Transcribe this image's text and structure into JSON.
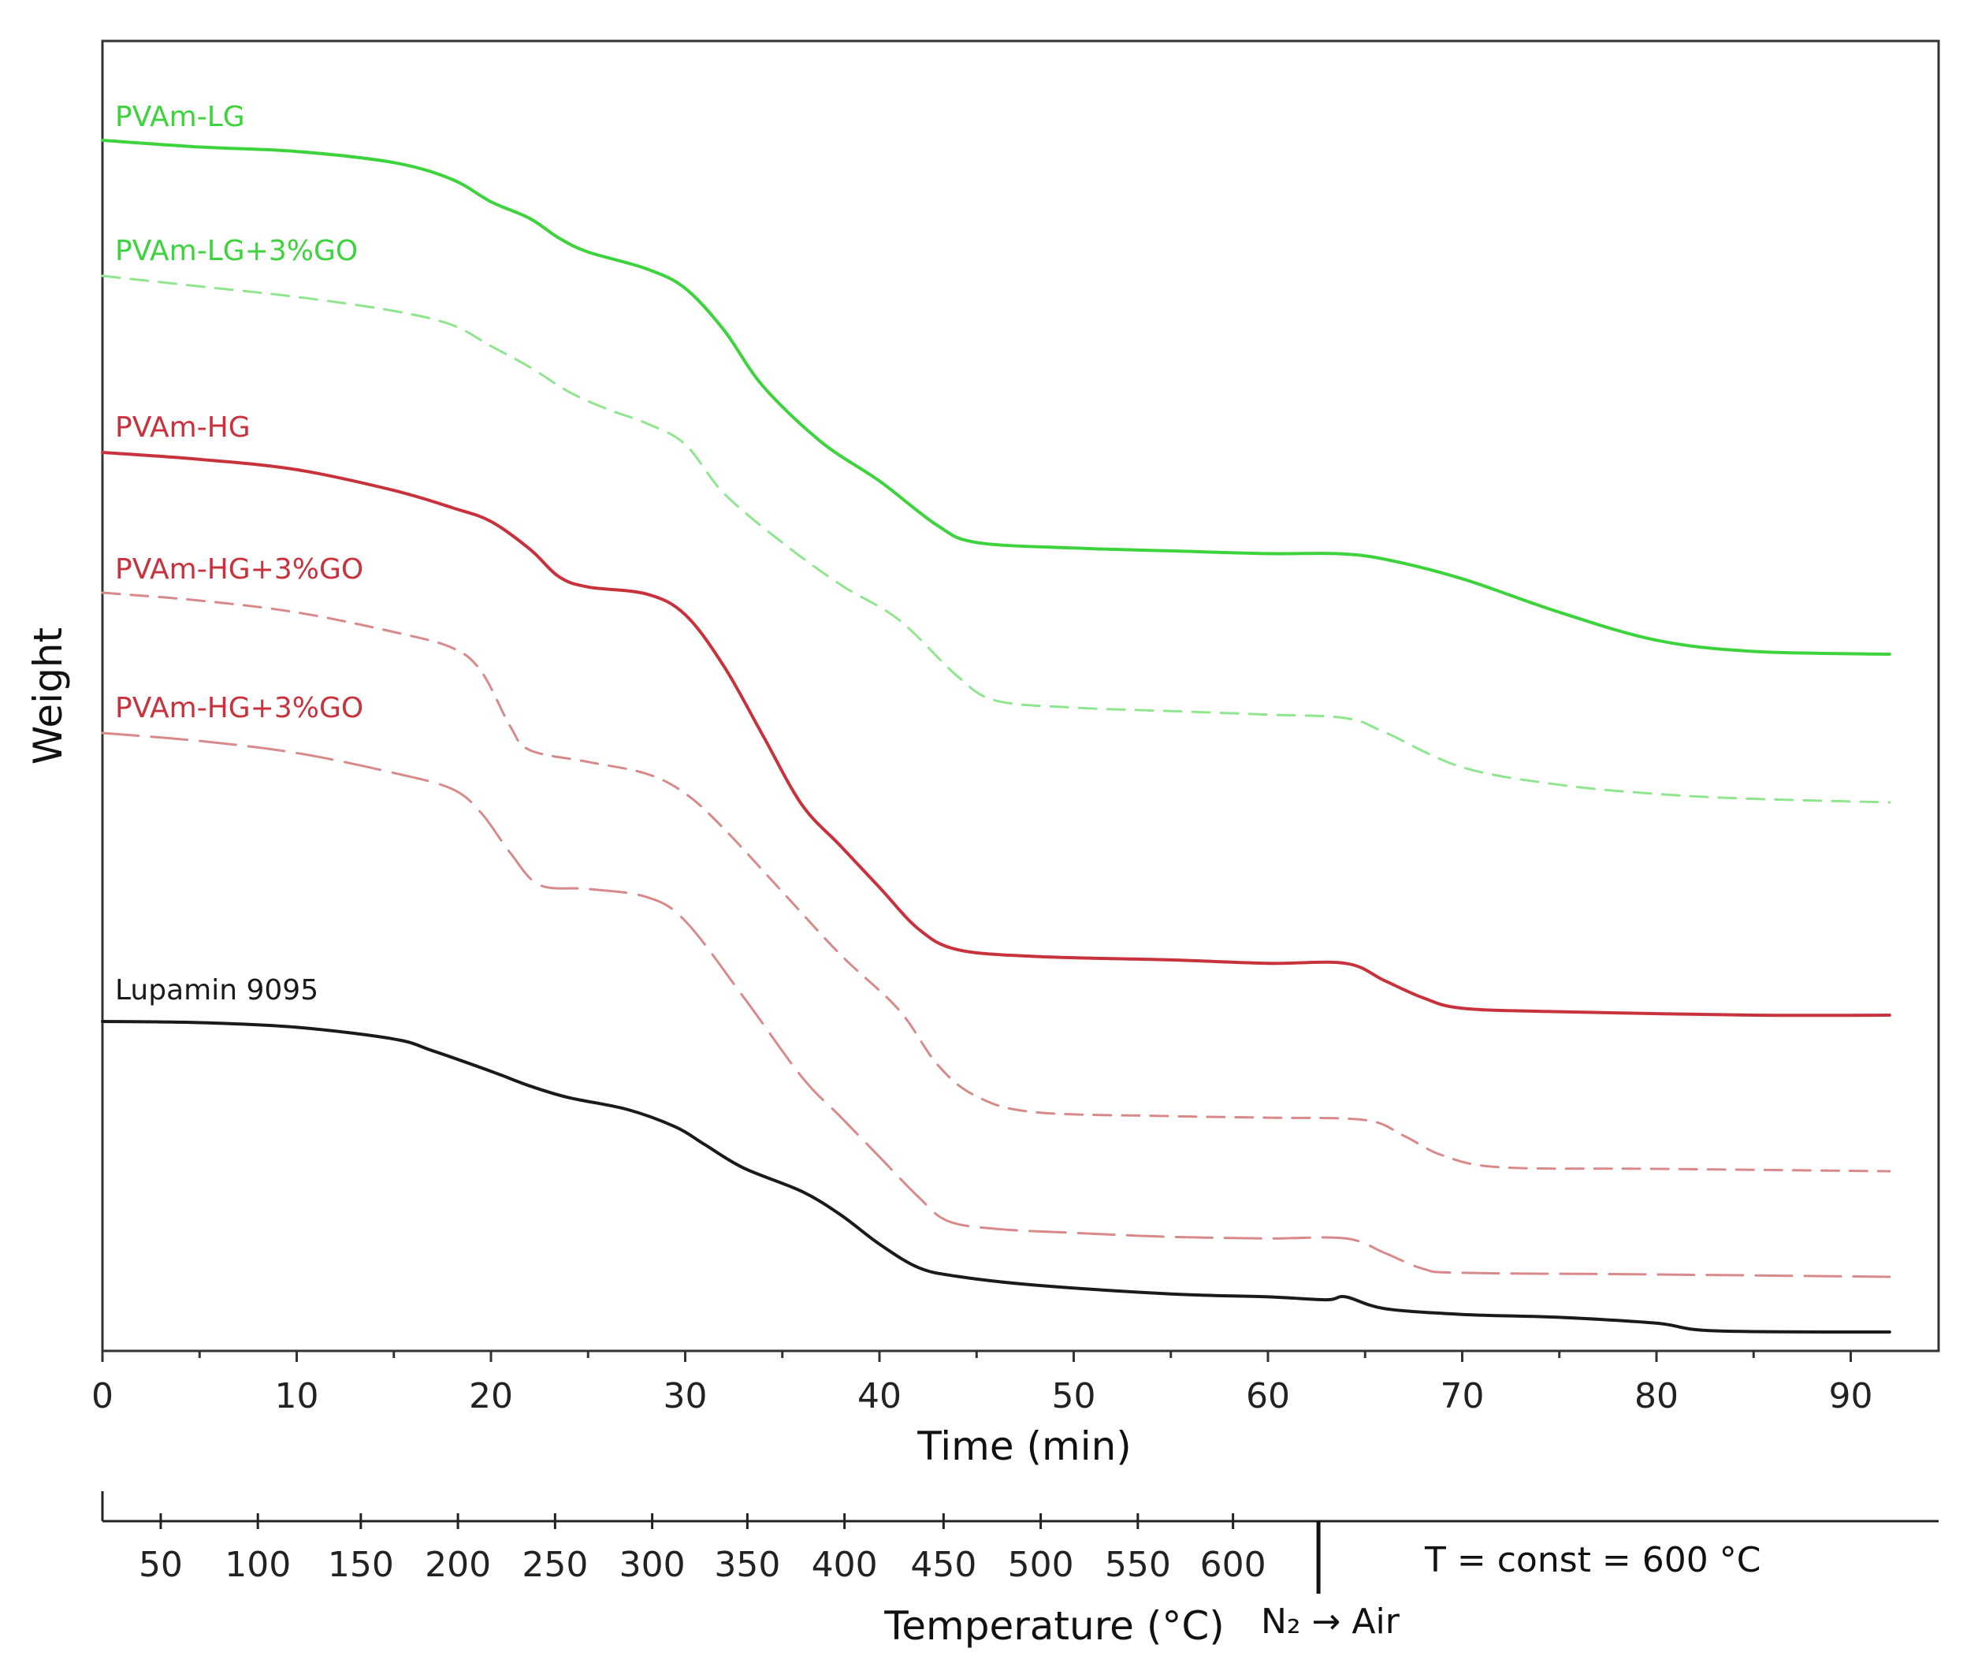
{
  "chart_data": {
    "type": "line",
    "xlabel": "Time (min)",
    "ylabel": "Weight",
    "xlim": [
      0,
      95
    ],
    "x_ticks": [
      0,
      10,
      20,
      30,
      40,
      50,
      60,
      70,
      80,
      90
    ],
    "x_tick_labels": [
      "0",
      "10",
      "20",
      "30",
      "40",
      "50",
      "60",
      "70",
      "80",
      "90"
    ],
    "y_ticks_shown": false,
    "grid": false,
    "series": [
      {
        "name": "PVAm-LG",
        "color": "#3cd33c",
        "style": "solid",
        "points": [
          [
            0,
            100
          ],
          [
            5,
            98.8
          ],
          [
            10,
            98
          ],
          [
            15,
            96
          ],
          [
            18,
            93
          ],
          [
            20,
            89
          ],
          [
            22,
            86
          ],
          [
            23.5,
            82.5
          ],
          [
            25,
            80
          ],
          [
            28,
            77
          ],
          [
            30,
            73.5
          ],
          [
            32,
            66
          ],
          [
            34,
            56
          ],
          [
            37,
            46
          ],
          [
            40,
            39
          ],
          [
            43,
            31
          ],
          [
            45,
            28
          ],
          [
            50,
            27
          ],
          [
            55,
            26.5
          ],
          [
            60,
            26
          ],
          [
            63.5,
            26
          ],
          [
            66,
            25
          ],
          [
            70,
            21.5
          ],
          [
            75,
            15.5
          ],
          [
            80,
            10.5
          ],
          [
            85,
            8.5
          ],
          [
            92,
            8
          ]
        ]
      },
      {
        "name": "PVAm-LG+3%GO",
        "color": "#8fe68f",
        "style": "dashed",
        "points": [
          [
            0,
            90
          ],
          [
            5,
            88.5
          ],
          [
            10,
            87
          ],
          [
            15,
            85
          ],
          [
            18,
            83
          ],
          [
            20,
            80
          ],
          [
            22,
            77
          ],
          [
            24,
            73.5
          ],
          [
            26,
            71
          ],
          [
            28,
            69
          ],
          [
            30,
            66
          ],
          [
            32,
            59
          ],
          [
            35,
            52
          ],
          [
            38,
            46
          ],
          [
            41,
            41
          ],
          [
            44,
            33
          ],
          [
            46,
            29.5
          ],
          [
            50,
            28.5
          ],
          [
            55,
            28
          ],
          [
            60,
            27.5
          ],
          [
            64,
            27
          ],
          [
            66,
            25
          ],
          [
            70,
            20
          ],
          [
            75,
            17.5
          ],
          [
            80,
            16.2
          ],
          [
            85,
            15.5
          ],
          [
            92,
            15
          ]
        ]
      },
      {
        "name": "PVAm-HG",
        "color": "#c8323c",
        "style": "solid",
        "points": [
          [
            0,
            100
          ],
          [
            5,
            99
          ],
          [
            10,
            97.5
          ],
          [
            15,
            94.5
          ],
          [
            18,
            92
          ],
          [
            20,
            90
          ],
          [
            22,
            86
          ],
          [
            23.5,
            82
          ],
          [
            25,
            80.5
          ],
          [
            28,
            79.5
          ],
          [
            30,
            76.5
          ],
          [
            32,
            69
          ],
          [
            34,
            59
          ],
          [
            36,
            49
          ],
          [
            38,
            43
          ],
          [
            40,
            37
          ],
          [
            42,
            31
          ],
          [
            44,
            28
          ],
          [
            48,
            27
          ],
          [
            55,
            26.5
          ],
          [
            60,
            26
          ],
          [
            64,
            26
          ],
          [
            66,
            23.5
          ],
          [
            68,
            21
          ],
          [
            70,
            19.5
          ],
          [
            75,
            19
          ],
          [
            85,
            18.5
          ],
          [
            92,
            18.5
          ]
        ]
      },
      {
        "name": "PVAm-HG+3%GO",
        "color": "#d88a8a",
        "style": "dashed",
        "points": [
          [
            0,
            100
          ],
          [
            5,
            99
          ],
          [
            10,
            97.5
          ],
          [
            15,
            95
          ],
          [
            18,
            93
          ],
          [
            19.5,
            90
          ],
          [
            21,
            83
          ],
          [
            22,
            80
          ],
          [
            25,
            78.5
          ],
          [
            28,
            77
          ],
          [
            30,
            74.5
          ],
          [
            32,
            70
          ],
          [
            35,
            62
          ],
          [
            38,
            54
          ],
          [
            41,
            47
          ],
          [
            43,
            40
          ],
          [
            45,
            36
          ],
          [
            48,
            34
          ],
          [
            55,
            33.5
          ],
          [
            60,
            33.3
          ],
          [
            65,
            33
          ],
          [
            67,
            31
          ],
          [
            69,
            28.5
          ],
          [
            72,
            27
          ],
          [
            80,
            26.8
          ],
          [
            92,
            26.5
          ]
        ]
      },
      {
        "name": "PVAm-HG+3%GO",
        "color": "#d88a8a",
        "style": "longdash",
        "points": [
          [
            0,
            100
          ],
          [
            5,
            99
          ],
          [
            10,
            97.5
          ],
          [
            15,
            95
          ],
          [
            18,
            93
          ],
          [
            19.5,
            90
          ],
          [
            21,
            85
          ],
          [
            22.5,
            81
          ],
          [
            25,
            80.5
          ],
          [
            28,
            79.5
          ],
          [
            30,
            76.5
          ],
          [
            33,
            67
          ],
          [
            36,
            57
          ],
          [
            38,
            52
          ],
          [
            40,
            47
          ],
          [
            42,
            42
          ],
          [
            43.5,
            39
          ],
          [
            46,
            38
          ],
          [
            50,
            37.5
          ],
          [
            55,
            37
          ],
          [
            60,
            36.8
          ],
          [
            64,
            36.8
          ],
          [
            66,
            35
          ],
          [
            68,
            33
          ],
          [
            70,
            32.5
          ],
          [
            80,
            32.3
          ],
          [
            92,
            32
          ]
        ]
      },
      {
        "name": "Lupamin 9095",
        "color": "#1a1a1a",
        "style": "solid",
        "points": [
          [
            0,
            100
          ],
          [
            5,
            99.8
          ],
          [
            10,
            99
          ],
          [
            15,
            97
          ],
          [
            17,
            95
          ],
          [
            20,
            91.5
          ],
          [
            22,
            89
          ],
          [
            24,
            87
          ],
          [
            27,
            85
          ],
          [
            29.5,
            82
          ],
          [
            31,
            79
          ],
          [
            33,
            75
          ],
          [
            36,
            71
          ],
          [
            38,
            67
          ],
          [
            40,
            62
          ],
          [
            42,
            58
          ],
          [
            44,
            56.5
          ],
          [
            48,
            55
          ],
          [
            55,
            53.5
          ],
          [
            60,
            53
          ],
          [
            63,
            52.5
          ],
          [
            64,
            53
          ],
          [
            66,
            51
          ],
          [
            70,
            50
          ],
          [
            75,
            49.5
          ],
          [
            80,
            48.5
          ],
          [
            83,
            47.2
          ],
          [
            92,
            47
          ]
        ]
      }
    ],
    "labels": [
      {
        "text": "PVAm-LG",
        "color": "#3cd33c"
      },
      {
        "text": "PVAm-LG+3%GO",
        "color": "#3cd33c"
      },
      {
        "text": "PVAm-HG",
        "color": "#c8323c"
      },
      {
        "text": "PVAm-HG+3%GO",
        "color": "#c8323c"
      },
      {
        "text": "PVAm-HG+3%GO",
        "color": "#c8323c"
      },
      {
        "text": "Lupamin 9095",
        "color": "#1a1a1a"
      }
    ],
    "temperature_axis": {
      "label": "Temperature (°C)",
      "ticks": [
        {
          "label": "50",
          "time": 3
        },
        {
          "label": "100",
          "time": 8
        },
        {
          "label": "150",
          "time": 13.3
        },
        {
          "label": "200",
          "time": 18.3
        },
        {
          "label": "250",
          "time": 23.3
        },
        {
          "label": "300",
          "time": 28.3
        },
        {
          "label": "350",
          "time": 33.2
        },
        {
          "label": "400",
          "time": 38.2
        },
        {
          "label": "450",
          "time": 43.3
        },
        {
          "label": "500",
          "time": 48.3
        },
        {
          "label": "550",
          "time": 53.3
        },
        {
          "label": "600",
          "time": 58.2
        }
      ],
      "switch_time": 62.6,
      "switch_label": "N₂ → Air",
      "const_label": "T = const = 600 °C"
    }
  }
}
